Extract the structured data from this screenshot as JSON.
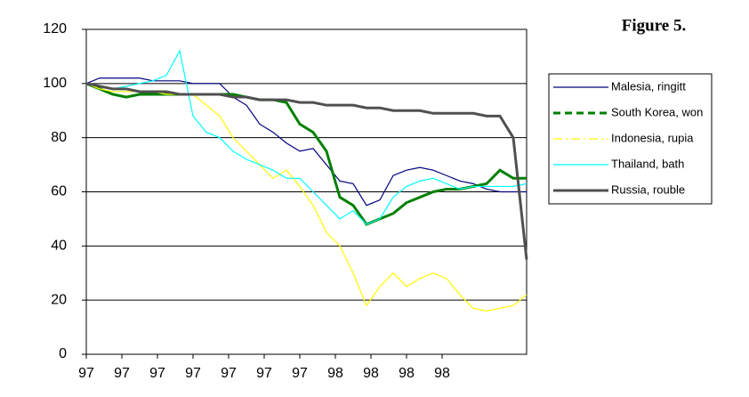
{
  "chart_data": {
    "type": "line",
    "title": "Figure 5.",
    "x": [
      0,
      3,
      6,
      9,
      12,
      15,
      18,
      21,
      24,
      27,
      30,
      33,
      36,
      39,
      42,
      45,
      48,
      51,
      54,
      57,
      60,
      63,
      66,
      69,
      72,
      75,
      78,
      81,
      84,
      87,
      90,
      93,
      96,
      99
    ],
    "xlim": [
      0,
      99
    ],
    "xticks": [
      {
        "value": 0,
        "label": "97"
      },
      {
        "value": 8,
        "label": "97"
      },
      {
        "value": 16,
        "label": "97"
      },
      {
        "value": 24,
        "label": "97"
      },
      {
        "value": 32,
        "label": "97"
      },
      {
        "value": 40,
        "label": "97"
      },
      {
        "value": 48,
        "label": "97"
      },
      {
        "value": 56,
        "label": "98"
      },
      {
        "value": 64,
        "label": "98"
      },
      {
        "value": 72,
        "label": "98"
      },
      {
        "value": 80,
        "label": "98"
      }
    ],
    "ylim": [
      0,
      120
    ],
    "yticks": [
      0,
      20,
      40,
      60,
      80,
      100,
      120
    ],
    "grid": true,
    "series": [
      {
        "name": "Malesia, ringitt",
        "color": "#000080",
        "width": 1.2,
        "values": [
          100,
          102,
          102,
          102,
          102,
          101,
          101,
          101,
          100,
          100,
          100,
          95,
          92,
          85,
          82,
          78,
          75,
          76,
          70,
          64,
          63,
          55,
          57,
          66,
          68,
          69,
          68,
          66,
          64,
          63,
          61,
          60,
          60,
          60
        ]
      },
      {
        "name": "South Korea, won",
        "color": "#008000",
        "width": 3,
        "values": [
          100,
          98,
          96,
          95,
          96,
          96,
          96,
          96,
          96,
          96,
          96,
          96,
          95,
          94,
          94,
          93,
          85,
          82,
          75,
          58,
          55,
          48,
          50,
          52,
          56,
          58,
          60,
          61,
          61,
          62,
          63,
          68,
          65,
          65
        ]
      },
      {
        "name": "Indonesia, rupia",
        "color": "#ffff00",
        "width": 1.2,
        "values": [
          100,
          98,
          97,
          97,
          97,
          97,
          96,
          96,
          96,
          92,
          88,
          80,
          75,
          70,
          65,
          68,
          62,
          55,
          45,
          40,
          30,
          18,
          25,
          30,
          25,
          28,
          30,
          28,
          22,
          17,
          16,
          17,
          18,
          22
        ]
      },
      {
        "name": "Thailand, bath",
        "color": "#00ffff",
        "width": 1.2,
        "values": [
          100,
          99,
          98,
          99,
          100,
          101,
          103,
          112,
          88,
          82,
          80,
          75,
          72,
          70,
          68,
          65,
          65,
          60,
          55,
          50,
          53,
          48,
          50,
          58,
          62,
          64,
          65,
          63,
          61,
          62,
          62,
          62,
          62,
          63
        ]
      },
      {
        "name": "Russia, rouble",
        "color": "#505050",
        "width": 3,
        "values": [
          100,
          99,
          98,
          98,
          97,
          97,
          97,
          96,
          96,
          96,
          96,
          95,
          95,
          94,
          94,
          94,
          93,
          93,
          92,
          92,
          92,
          91,
          91,
          90,
          90,
          90,
          89,
          89,
          89,
          89,
          88,
          88,
          80,
          35
        ]
      }
    ]
  }
}
